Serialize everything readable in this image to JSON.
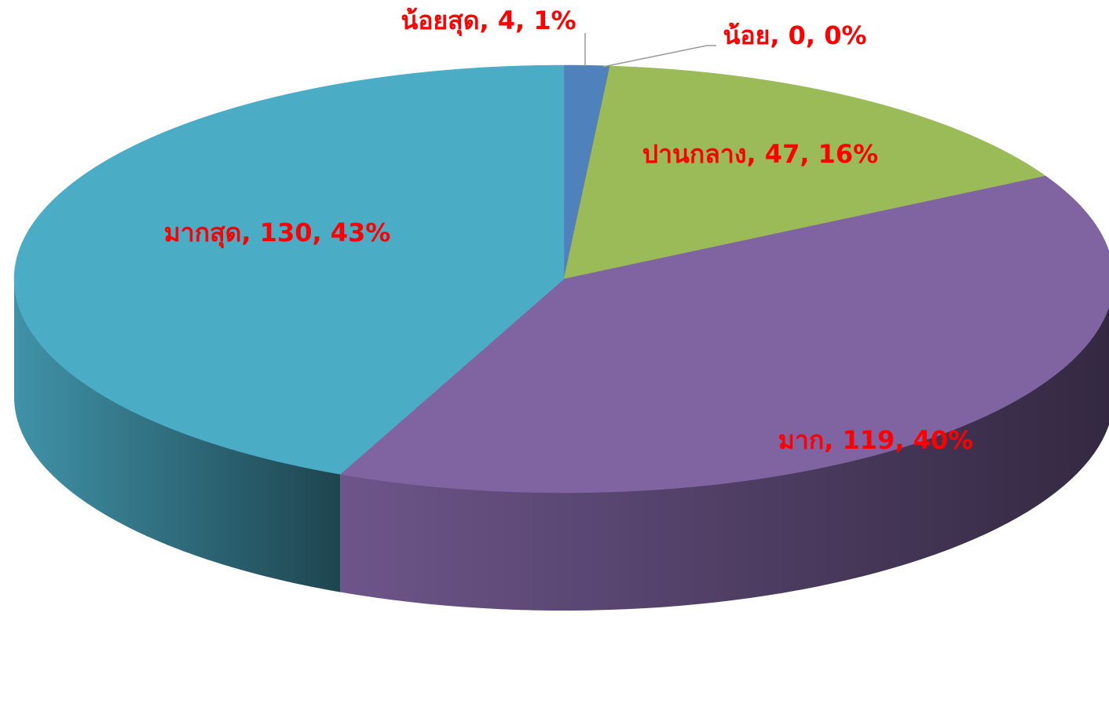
{
  "chart_data": {
    "type": "pie3d",
    "values": [
      4,
      0,
      47,
      119,
      130
    ],
    "value_labels": [
      "น้อยสุด, 4, 1%",
      "น้อย, 0, 0%",
      "ปานกลาง, 47, 16%",
      "มาก, 119, 40%",
      "มากสุด, 130, 43%"
    ],
    "colors": [
      "#4f81bd",
      "#c0504d",
      "#9bbb59",
      "#8064a2",
      "#4bacc6"
    ],
    "label_color": "#ff0000"
  }
}
